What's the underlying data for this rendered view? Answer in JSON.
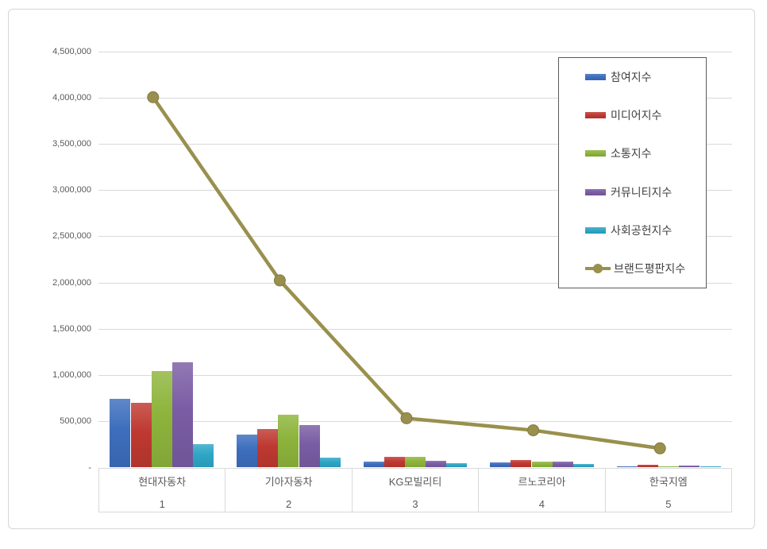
{
  "chart_data": {
    "type": "bar",
    "combo": "grouped-bars-with-line-overlay",
    "title": "",
    "categories": [
      "현대자동차",
      "기아자동차",
      "KG모빌리티",
      "르노코리아",
      "한국지엠"
    ],
    "category_ranks": [
      "1",
      "2",
      "3",
      "4",
      "5"
    ],
    "series": [
      {
        "name": "참여지수",
        "type": "bar",
        "color": "#3d6ebd",
        "values": [
          740000,
          360000,
          62000,
          55000,
          10000
        ]
      },
      {
        "name": "미디어지수",
        "type": "bar",
        "color": "#be3931",
        "values": [
          700000,
          415000,
          120000,
          80000,
          30000
        ]
      },
      {
        "name": "소통지수",
        "type": "bar",
        "color": "#8db43c",
        "values": [
          1040000,
          570000,
          112000,
          65000,
          17000
        ]
      },
      {
        "name": "커뮤니티지수",
        "type": "bar",
        "color": "#7a5ca4",
        "values": [
          1140000,
          460000,
          76000,
          65000,
          25000
        ]
      },
      {
        "name": "사회공헌지수",
        "type": "bar",
        "color": "#2ea6c6",
        "values": [
          250000,
          110000,
          48000,
          40000,
          12000
        ]
      },
      {
        "name": "브랜드평판지수",
        "type": "line",
        "color": "#99904d",
        "values": [
          3900000,
          1920000,
          430000,
          300000,
          105000
        ]
      }
    ],
    "y_axis": {
      "min": 0,
      "max": 4500000,
      "step": 500000,
      "zero_label": "-",
      "tick_labels": [
        "-",
        "500,000",
        "1,000,000",
        "1,500,000",
        "2,000,000",
        "2,500,000",
        "3,000,000",
        "3,500,000",
        "4,000,000",
        "4,500,000"
      ]
    },
    "legend": {
      "position": "top-right",
      "entries": [
        "참여지수",
        "미디어지수",
        "소통지수",
        "커뮤니티지수",
        "사회공헌지수",
        "브랜드평판지수"
      ]
    },
    "grid": true,
    "colors": {
      "gridline": "#d9d9d9",
      "axis_text": "#595959",
      "legend_text": "#404040",
      "legend_border": "#5a5a5a",
      "frame_border": "#d6d6d6",
      "background": "#ffffff"
    }
  }
}
